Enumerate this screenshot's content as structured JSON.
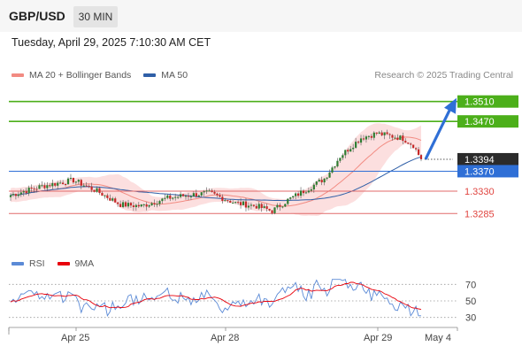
{
  "header": {
    "pair": "GBP/USD",
    "timeframe": "30 MIN"
  },
  "timestamp": "Tuesday, April 29, 2025 7:10:30 AM CET",
  "legend": {
    "ma20": {
      "label": "MA 20 + Bollinger Bands",
      "color": "#f28b82"
    },
    "ma50": {
      "label": "MA 50",
      "color": "#2f5fa7"
    }
  },
  "credit": "Research © 2025 Trading Central",
  "rsi_legend": {
    "rsi": {
      "label": "RSI",
      "color": "#5b8ad6"
    },
    "ma9": {
      "label": "9MA",
      "color": "#e8000b"
    }
  },
  "chart_data": {
    "type": "candlestick",
    "ylim": [
      1.3225,
      1.3545
    ],
    "levels": [
      {
        "label": "1.3510",
        "value": 1.351,
        "kind": "resistance",
        "color": "#4caf1a"
      },
      {
        "label": "1.3470",
        "value": 1.347,
        "kind": "resistance",
        "color": "#4caf1a"
      },
      {
        "label": "1.3394",
        "value": 1.3394,
        "kind": "last-price",
        "color": "#333333"
      },
      {
        "label": "1.3370",
        "value": 1.337,
        "kind": "pivot",
        "color": "#2f6fd6"
      },
      {
        "label": "1.3330",
        "value": 1.333,
        "kind": "support",
        "color": "#e06a6a"
      },
      {
        "label": "1.3285",
        "value": 1.3285,
        "kind": "support",
        "color": "#e06a6a"
      }
    ],
    "arrow": {
      "from": 1.3394,
      "to": 1.351,
      "direction": "up"
    },
    "x_labels": [
      "Apr 25",
      "Apr 28",
      "Apr 29",
      "May 4"
    ],
    "rsi": {
      "ylim": [
        20,
        80
      ],
      "ticks": [
        "70",
        "50",
        "30"
      ]
    }
  }
}
